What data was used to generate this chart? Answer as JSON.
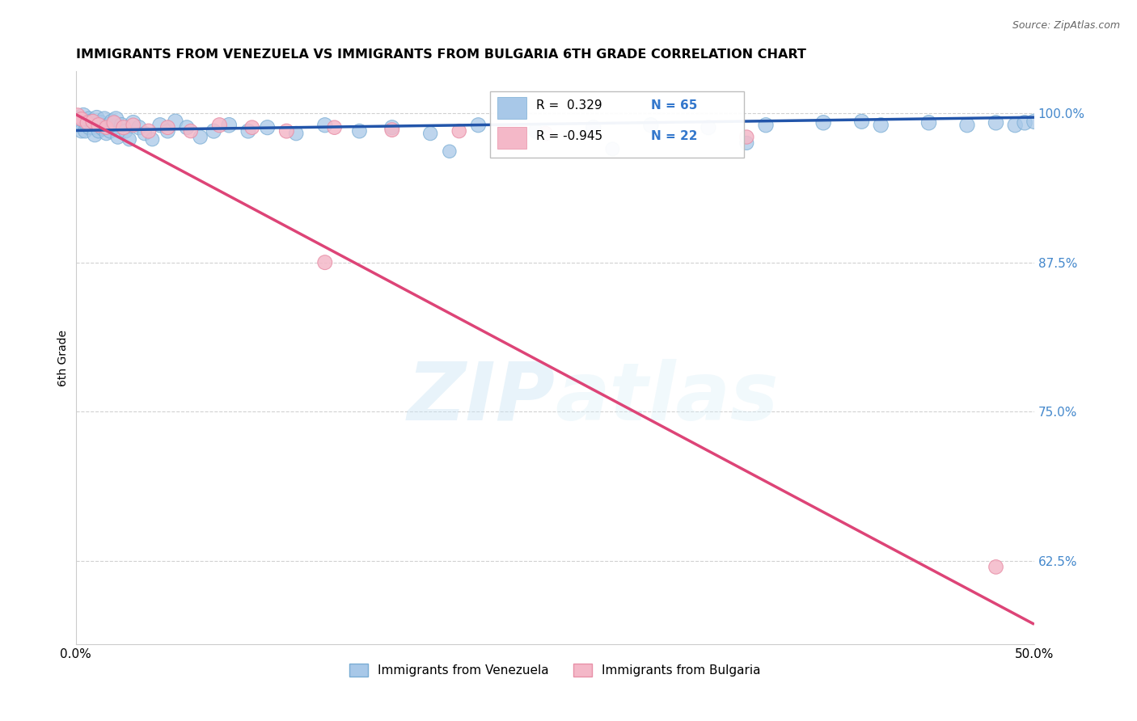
{
  "title": "IMMIGRANTS FROM VENEZUELA VS IMMIGRANTS FROM BULGARIA 6TH GRADE CORRELATION CHART",
  "source": "Source: ZipAtlas.com",
  "xlabel_venezuela": "Immigrants from Venezuela",
  "xlabel_bulgaria": "Immigrants from Bulgaria",
  "ylabel": "6th Grade",
  "watermark_zip": "ZIP",
  "watermark_atlas": "atlas",
  "xlim": [
    0.0,
    0.5
  ],
  "ylim": [
    0.555,
    1.035
  ],
  "yticks": [
    1.0,
    0.875,
    0.75,
    0.625
  ],
  "ytick_labels": [
    "100.0%",
    "87.5%",
    "75.0%",
    "62.5%"
  ],
  "xticks": [
    0.0,
    0.1,
    0.2,
    0.3,
    0.4,
    0.5
  ],
  "xtick_labels": [
    "0.0%",
    "",
    "",
    "",
    "",
    "50.0%"
  ],
  "R_venezuela": 0.329,
  "N_venezuela": 65,
  "R_bulgaria": -0.945,
  "N_bulgaria": 22,
  "blue_color": "#a8c8e8",
  "blue_edge_color": "#7aadd4",
  "pink_color": "#f4b8c8",
  "pink_edge_color": "#e890a8",
  "blue_line_color": "#2255aa",
  "pink_line_color": "#dd4477",
  "venezuela_x": [
    0.001,
    0.002,
    0.003,
    0.004,
    0.005,
    0.005,
    0.006,
    0.007,
    0.007,
    0.008,
    0.009,
    0.01,
    0.011,
    0.012,
    0.012,
    0.013,
    0.014,
    0.015,
    0.015,
    0.016,
    0.017,
    0.018,
    0.019,
    0.02,
    0.021,
    0.022,
    0.024,
    0.026,
    0.028,
    0.03,
    0.033,
    0.036,
    0.04,
    0.044,
    0.048,
    0.052,
    0.058,
    0.065,
    0.072,
    0.08,
    0.09,
    0.1,
    0.115,
    0.13,
    0.148,
    0.165,
    0.185,
    0.21,
    0.24,
    0.27,
    0.3,
    0.33,
    0.36,
    0.39,
    0.42,
    0.445,
    0.465,
    0.48,
    0.49,
    0.495,
    0.35,
    0.28,
    0.195,
    0.41,
    0.5
  ],
  "venezuela_y": [
    0.995,
    0.99,
    0.985,
    0.998,
    0.992,
    0.985,
    0.99,
    0.995,
    0.988,
    0.993,
    0.988,
    0.982,
    0.996,
    0.99,
    0.985,
    0.992,
    0.987,
    0.995,
    0.988,
    0.983,
    0.99,
    0.985,
    0.993,
    0.988,
    0.995,
    0.98,
    0.99,
    0.985,
    0.978,
    0.992,
    0.988,
    0.983,
    0.978,
    0.99,
    0.985,
    0.993,
    0.988,
    0.98,
    0.985,
    0.99,
    0.985,
    0.988,
    0.983,
    0.99,
    0.985,
    0.988,
    0.983,
    0.99,
    0.985,
    0.988,
    0.99,
    0.988,
    0.99,
    0.992,
    0.99,
    0.992,
    0.99,
    0.992,
    0.99,
    0.992,
    0.975,
    0.97,
    0.968,
    0.993,
    0.993
  ],
  "venezuela_size": [
    200,
    180,
    160,
    190,
    170,
    160,
    175,
    185,
    165,
    180,
    160,
    175,
    185,
    170,
    160,
    178,
    162,
    188,
    168,
    155,
    172,
    165,
    182,
    168,
    190,
    158,
    175,
    162,
    148,
    180,
    170,
    158,
    145,
    172,
    162,
    178,
    165,
    155,
    168,
    178,
    165,
    170,
    158,
    172,
    162,
    168,
    155,
    170,
    162,
    168,
    172,
    168,
    172,
    175,
    172,
    175,
    172,
    175,
    172,
    175,
    150,
    145,
    140,
    170,
    175
  ],
  "bulgaria_x": [
    0.001,
    0.003,
    0.006,
    0.009,
    0.012,
    0.016,
    0.02,
    0.025,
    0.03,
    0.038,
    0.048,
    0.06,
    0.075,
    0.092,
    0.11,
    0.135,
    0.165,
    0.2,
    0.245,
    0.35,
    0.13,
    0.48
  ],
  "bulgaria_y": [
    0.998,
    0.995,
    0.992,
    0.993,
    0.99,
    0.988,
    0.992,
    0.988,
    0.99,
    0.985,
    0.988,
    0.985,
    0.99,
    0.988,
    0.985,
    0.988,
    0.986,
    0.985,
    0.983,
    0.98,
    0.875,
    0.62
  ],
  "bulgaria_size": [
    175,
    160,
    155,
    168,
    172,
    158,
    165,
    170,
    158,
    168,
    162,
    155,
    170,
    160,
    165,
    158,
    162,
    155,
    160,
    155,
    165,
    160
  ],
  "blue_trend_x": [
    0.0,
    0.5
  ],
  "blue_trend_y": [
    0.9855,
    0.9965
  ],
  "pink_trend_x": [
    0.0,
    0.5
  ],
  "pink_trend_y": [
    0.999,
    0.572
  ]
}
